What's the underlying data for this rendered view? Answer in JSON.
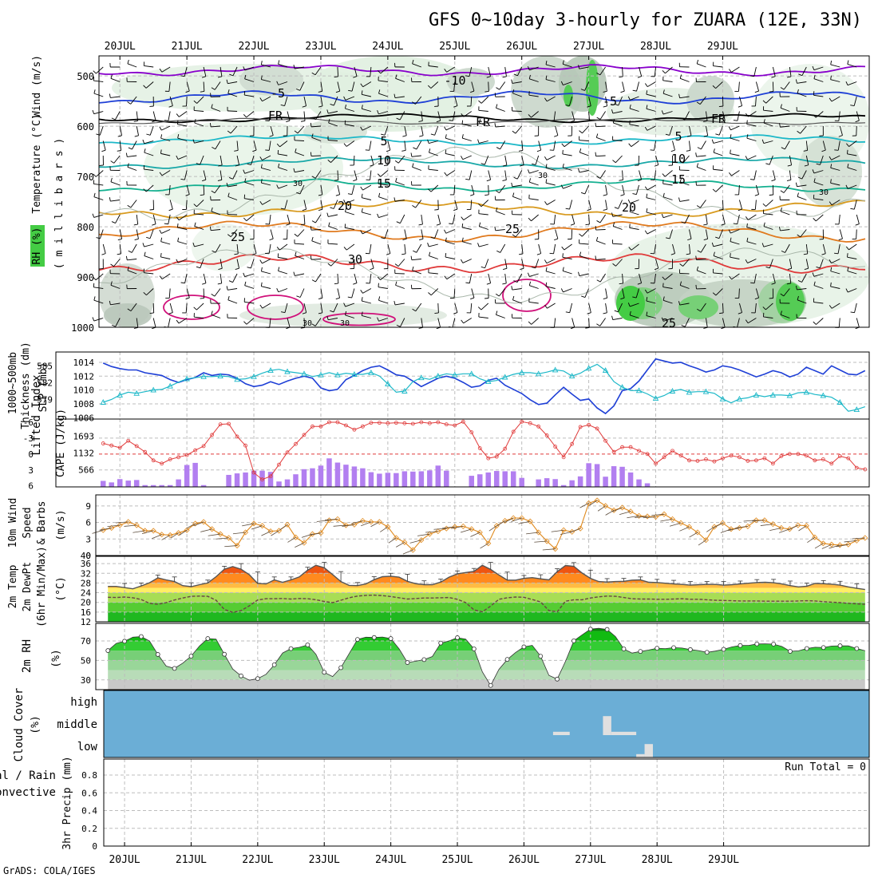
{
  "title": "GFS 0~10day 3-hourly for ZUARA (12E, 33N)",
  "credit": "GrADS: COLA/IGES",
  "dates": [
    "20JUL",
    "21JUL",
    "22JUL",
    "23JUL",
    "24JUL",
    "25JUL",
    "26JUL",
    "27JUL",
    "28JUL",
    "29JUL"
  ],
  "colors": {
    "purple": "#8800cc",
    "blue": "#1e3fd6",
    "cyan": "#1cb8c8",
    "orange": "#e08a1e",
    "red": "#e03a3a",
    "magenta": "#d0107a",
    "green": "#22c022",
    "skyblue": "#6baed6",
    "cape": "#b27ff0"
  },
  "upper": {
    "ylabel_rh": "RH (%)",
    "ylabel_temp": "Temperature (°C)",
    "ylabel_wind": "Wind (m/s)",
    "ylabel_unit": "( m i l l i b a r s )",
    "levels": [
      "500",
      "600",
      "700",
      "800",
      "900",
      "1000"
    ],
    "contour_labels": [
      {
        "text": "-10",
        "color": "#8800cc"
      },
      {
        "text": "-5",
        "color": "#1e3fd6"
      },
      {
        "text": "-5",
        "color": "#1e3fd6"
      },
      {
        "text": "FR",
        "color": "#000000"
      },
      {
        "text": "FR",
        "color": "#000000"
      },
      {
        "text": "FR",
        "color": "#000000"
      },
      {
        "text": "5",
        "color": "#1cb8c8"
      },
      {
        "text": "5",
        "color": "#1cb8c8"
      },
      {
        "text": "10",
        "color": "#19a8a8"
      },
      {
        "text": "10",
        "color": "#19a8a8"
      },
      {
        "text": "15",
        "color": "#14b090"
      },
      {
        "text": "15",
        "color": "#14b090"
      },
      {
        "text": "20",
        "color": "#d89a1e"
      },
      {
        "text": "20",
        "color": "#d89a1e"
      },
      {
        "text": "25",
        "color": "#e07a1e"
      },
      {
        "text": "25",
        "color": "#e07a1e"
      },
      {
        "text": "25",
        "color": "#e07a1e"
      },
      {
        "text": "30",
        "color": "#e03a3a"
      },
      {
        "text": "30",
        "color": "#888888"
      },
      {
        "text": "30",
        "color": "#888888"
      },
      {
        "text": "30",
        "color": "#888888"
      },
      {
        "text": "30",
        "color": "#888888"
      },
      {
        "text": "30",
        "color": "#888888"
      }
    ]
  },
  "slp_panel": {
    "label_thick": "1000~500mb",
    "label_thick2": "Thickness (dm)",
    "label_slp": "SLP (mb)",
    "ticks_slp": [
      "1014",
      "1012",
      "1010",
      "1008",
      "1006"
    ],
    "ticks_thick": [
      "585",
      "582",
      "579"
    ]
  },
  "cape_panel": {
    "label_li": "Lifted Index",
    "label_cape": "CAPE (J/kg)",
    "ticks_li": [
      "-6",
      "-3",
      "0",
      "3",
      "6"
    ],
    "ticks_cape": [
      "1693",
      "1132",
      "566"
    ]
  },
  "wind_panel": {
    "label1": "10m Wind",
    "label2": "Speed",
    "label3": "& Barbs",
    "unit": "(m/s)",
    "ticks": [
      "9",
      "6",
      "3",
      "0"
    ]
  },
  "temp_panel": {
    "label1": "2m Temp",
    "label2": "2m DewPt",
    "label3": "(6hr Min/Max)",
    "unit": "(°C)",
    "ticks": [
      "36",
      "32",
      "28",
      "24",
      "20",
      "16",
      "12"
    ]
  },
  "rh_panel": {
    "label": "2m RH",
    "unit": "(%)",
    "ticks": [
      "70",
      "50",
      "30"
    ]
  },
  "cloud_panel": {
    "label": "Cloud Cover",
    "unit": "(%)",
    "ticks": [
      "high",
      "middle",
      "low"
    ]
  },
  "precip_panel": {
    "label1": "Total / Rain",
    "label2": "Convective",
    "label3": "3hr Precip (mm)",
    "ticks": [
      "0.8",
      "0.6",
      "0.4",
      "0.2",
      "0"
    ],
    "run_total": "Run Total = 0"
  },
  "chart_data": {
    "type": "line",
    "x": "3-hourly steps from 19JUL 18Z to 29JUL 12Z",
    "slp_mb": [
      1013.9,
      1013.4,
      1013.1,
      1012.9,
      1012.9,
      1012.5,
      1012.3,
      1012.1,
      1011.5,
      1011.1,
      1011.5,
      1011.8,
      1012.5,
      1012.1,
      1012.3,
      1012.2,
      1011.7,
      1010.9,
      1010.5,
      1010.7,
      1011.2,
      1010.8,
      1011.3,
      1011.7,
      1012.0,
      1011.7,
      1010.3,
      1009.9,
      1010.1,
      1011.5,
      1012.1,
      1012.8,
      1013.3,
      1013.5,
      1012.9,
      1012.2,
      1012.0,
      1011.3,
      1010.5,
      1011.1,
      1011.7,
      1012.0,
      1011.7,
      1011.1,
      1010.4,
      1010.6,
      1011.4,
      1011.7,
      1010.7,
      1010.1,
      1009.5,
      1008.6,
      1007.9,
      1008.1,
      1009.3,
      1010.4,
      1009.4,
      1008.5,
      1008.7,
      1007.4,
      1006.6,
      1007.7,
      1009.9,
      1010.2,
      1011.3,
      1012.9,
      1014.5,
      1014.2,
      1013.9,
      1014.0,
      1013.5,
      1013.1,
      1012.6,
      1012.9,
      1013.5,
      1013.3,
      1012.9,
      1012.4,
      1011.9,
      1012.3,
      1012.8,
      1012.5,
      1011.9,
      1012.3,
      1013.3,
      1012.8,
      1012.3,
      1013.5,
      1012.9,
      1012.3,
      1012.2,
      1012.8
    ],
    "thickness_dm": [
      578.5,
      579.0,
      579.8,
      580.3,
      580.1,
      580.4,
      580.7,
      580.8,
      581.4,
      582.1,
      582.7,
      582.9,
      583.1,
      583.1,
      583.2,
      583.1,
      582.6,
      582.7,
      583.1,
      583.7,
      584.2,
      584.4,
      584.0,
      583.8,
      583.6,
      583.1,
      583.4,
      583.8,
      583.4,
      583.7,
      583.5,
      583.5,
      583.8,
      583.2,
      581.8,
      580.3,
      580.5,
      582.2,
      582.9,
      582.6,
      583.2,
      583.6,
      583.4,
      583.6,
      583.6,
      582.7,
      582.2,
      582.4,
      583.0,
      583.5,
      583.8,
      583.8,
      583.6,
      583.9,
      584.3,
      584.1,
      583.2,
      583.7,
      584.6,
      585.3,
      584.2,
      582.2,
      581.2,
      580.6,
      580.6,
      580.0,
      579.2,
      579.7,
      580.5,
      580.8,
      580.3,
      580.4,
      580.4,
      580.1,
      579.1,
      578.4,
      579.1,
      579.3,
      579.8,
      579.5,
      579.8,
      579.8,
      579.7,
      580.2,
      580.3,
      579.9,
      579.7,
      579.4,
      578.5,
      576.9,
      577.2,
      577.7
    ],
    "lifted_index": [
      -2.0,
      -1.6,
      -1.2,
      -2.5,
      -1.5,
      -0.4,
      1.2,
      1.8,
      1.0,
      0.6,
      0.2,
      -0.7,
      -1.5,
      -3.6,
      -5.6,
      -5.7,
      -3.3,
      -1.6,
      3.5,
      4.8,
      4.2,
      2.0,
      -0.3,
      -1.9,
      -3.6,
      -5.2,
      -5.2,
      -6.0,
      -6.0,
      -5.4,
      -4.6,
      -5.2,
      -5.9,
      -5.9,
      -5.8,
      -5.9,
      -5.8,
      -5.7,
      -6.0,
      -5.8,
      -6.0,
      -5.6,
      -5.4,
      -6.1,
      -4.1,
      -1.1,
      0.8,
      0.5,
      -1.0,
      -4.2,
      -6.1,
      -5.8,
      -5.2,
      -3.5,
      -1.4,
      0.6,
      -1.9,
      -5.1,
      -5.5,
      -4.8,
      -2.5,
      -0.4,
      -1.3,
      -1.3,
      -0.6,
      0.0,
      1.8,
      0.6,
      -0.6,
      0.3,
      1.2,
      1.3,
      1.0,
      1.4,
      0.8,
      0.3,
      0.6,
      1.3,
      1.2,
      0.8,
      1.8,
      0.4,
      0.0,
      0.0,
      0.3,
      1.2,
      1.0,
      1.8,
      0.4,
      0.8,
      2.6,
      2.9
    ],
    "cape_jkg": [
      200,
      150,
      260,
      210,
      230,
      60,
      60,
      60,
      60,
      250,
      730,
      800,
      60,
      0,
      0,
      400,
      450,
      480,
      540,
      540,
      500,
      180,
      250,
      420,
      590,
      620,
      710,
      950,
      810,
      740,
      680,
      620,
      490,
      440,
      470,
      460,
      520,
      510,
      520,
      550,
      710,
      540,
      0,
      0,
      370,
      420,
      480,
      530,
      520,
      520,
      300,
      0,
      250,
      290,
      260,
      60,
      220,
      350,
      790,
      760,
      340,
      690,
      670,
      480,
      250,
      120,
      0,
      0,
      0,
      0,
      0,
      0,
      0,
      0,
      0,
      0,
      0,
      0,
      0,
      0,
      0,
      0,
      0,
      0,
      0,
      0,
      0,
      0,
      0,
      0,
      0,
      0
    ],
    "wind_speed_ms": [
      4.6,
      5.0,
      5.5,
      6.1,
      5.5,
      4.5,
      4.5,
      3.8,
      3.7,
      4.1,
      4.6,
      5.8,
      6.1,
      4.8,
      3.9,
      3.2,
      1.8,
      4.2,
      5.8,
      5.4,
      4.4,
      4.5,
      5.6,
      3.3,
      2.3,
      3.9,
      4.1,
      6.4,
      6.6,
      5.5,
      5.6,
      6.3,
      6.1,
      6.1,
      5.2,
      3.2,
      2.4,
      1.0,
      2.8,
      3.9,
      4.4,
      4.9,
      5.2,
      5.3,
      4.8,
      4.2,
      2.2,
      5.4,
      6.3,
      6.8,
      6.8,
      6.2,
      4.2,
      2.6,
      1.2,
      4.6,
      4.3,
      4.9,
      9.5,
      10.0,
      9.0,
      8.2,
      8.7,
      8.0,
      7.2,
      7.1,
      7.0,
      7.5,
      6.6,
      5.9,
      5.2,
      4.2,
      2.8,
      5.2,
      5.9,
      4.8,
      5.0,
      5.3,
      6.4,
      6.4,
      5.7,
      5.0,
      4.8,
      5.5,
      5.4,
      3.3,
      2.2,
      2.0,
      1.9,
      2.0,
      2.7,
      3.2
    ],
    "temp_c": [
      26.6,
      26.6,
      26.1,
      25.6,
      26.8,
      28.1,
      30.1,
      29.3,
      28.6,
      26.9,
      26.5,
      27.3,
      28.0,
      30.6,
      33.7,
      34.8,
      33.7,
      31.4,
      27.8,
      27.6,
      29.3,
      28.3,
      29.3,
      30.5,
      33.3,
      35.3,
      34.3,
      31.5,
      28.6,
      27.0,
      26.9,
      27.6,
      29.4,
      30.6,
      30.8,
      30.4,
      28.7,
      27.7,
      27.3,
      27.3,
      28.4,
      30.4,
      31.8,
      32.3,
      32.8,
      35.3,
      33.6,
      31.3,
      29.2,
      29.2,
      29.9,
      30.2,
      29.7,
      29.3,
      32.7,
      35.2,
      34.9,
      32.1,
      29.9,
      28.6,
      28.4,
      28.6,
      28.7,
      29.2,
      29.3,
      28.3,
      28.2,
      27.9,
      27.6,
      27.4,
      27.1,
      27.3,
      27.4,
      27.4,
      27.1,
      27.3,
      27.6,
      27.9,
      28.2,
      28.3,
      28.1,
      27.6,
      26.9,
      26.4,
      26.7,
      27.8,
      27.7,
      27.5,
      27.1,
      26.4,
      25.8,
      25.3
    ],
    "dewpoint_c": [
      22.1,
      22.0,
      22.2,
      21.9,
      21.2,
      19.6,
      19.2,
      19.9,
      21.0,
      21.8,
      22.5,
      22.6,
      22.5,
      20.9,
      17.1,
      15.9,
      16.6,
      18.6,
      21.0,
      21.5,
      21.5,
      21.6,
      21.4,
      21.6,
      21.5,
      21.1,
      20.4,
      19.9,
      20.9,
      21.9,
      22.6,
      22.9,
      23.0,
      22.8,
      22.4,
      21.9,
      21.4,
      21.6,
      21.8,
      21.8,
      21.9,
      22.0,
      21.3,
      19.9,
      16.9,
      16.1,
      18.5,
      21.3,
      21.9,
      22.2,
      22.1,
      21.2,
      20.2,
      16.6,
      16.1,
      20.5,
      21.1,
      21.1,
      21.8,
      22.3,
      22.6,
      22.5,
      22.0,
      21.5,
      21.4,
      21.4,
      21.3,
      21.3,
      21.4,
      21.5,
      21.3,
      21.3,
      21.1,
      20.9,
      20.8,
      20.7,
      20.6,
      20.6,
      20.6,
      20.5,
      20.5,
      20.5,
      20.5,
      20.6,
      20.7,
      20.6,
      20.3,
      20.1,
      19.9,
      19.6,
      19.4,
      19.2
    ],
    "rh_pct": [
      60.1,
      67.4,
      69.7,
      73.8,
      74.5,
      69.9,
      56.1,
      44.2,
      41.8,
      47.2,
      54.4,
      64.7,
      72.4,
      71.9,
      56.3,
      41.1,
      34.1,
      29.7,
      31.3,
      35.7,
      45.5,
      57.6,
      62.1,
      63.4,
      65.9,
      56.3,
      37.8,
      33.4,
      42.5,
      57.0,
      71.5,
      73.8,
      73.5,
      74.0,
      72.4,
      61.9,
      47.8,
      49.2,
      50.8,
      54.0,
      67.8,
      70.0,
      73.3,
      71.8,
      61.8,
      38.3,
      24.3,
      40.8,
      51.0,
      58.2,
      63.9,
      65.5,
      54.3,
      34.7,
      30.8,
      49.1,
      70.1,
      76.3,
      82.1,
      82.9,
      81.8,
      74.5,
      61.8,
      57.5,
      59.2,
      60.6,
      62.5,
      62.1,
      63.1,
      62.7,
      61.1,
      60.1,
      58.3,
      59.6,
      61.4,
      63.8,
      65.3,
      65.4,
      66.9,
      67.0,
      66.7,
      64.3,
      59.3,
      59.8,
      62.2,
      63.5,
      63.2,
      64.7,
      65.0,
      64.9,
      62.2,
      60.0
    ],
    "cloud_blocks": [
      {
        "layer": "middle",
        "from_step": 54,
        "to_step": 56,
        "frac": 0.15
      },
      {
        "layer": "middle",
        "from_step": 60,
        "to_step": 61,
        "frac": 0.85
      },
      {
        "layer": "middle",
        "from_step": 61,
        "to_step": 64,
        "frac": 0.15
      },
      {
        "layer": "low",
        "from_step": 64,
        "to_step": 65,
        "frac": 0.15
      },
      {
        "layer": "low",
        "from_step": 65,
        "to_step": 66,
        "frac": 0.6
      }
    ],
    "precip_mm": [],
    "upper_air": {
      "y_axis": "pressure (mb)",
      "y_range": [
        1000,
        460
      ],
      "temperature_contours_c": [
        -10,
        -5,
        0,
        5,
        10,
        15,
        20,
        25,
        30
      ]
    }
  }
}
